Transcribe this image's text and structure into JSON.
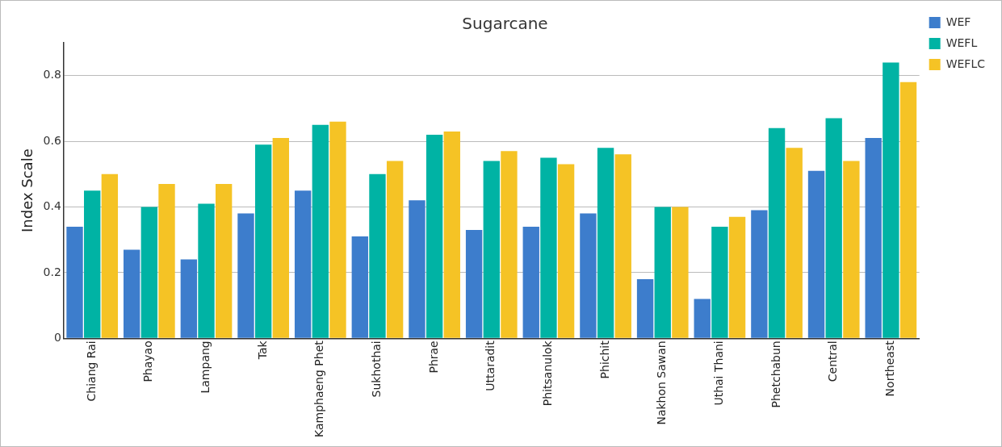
{
  "chart_data": {
    "type": "bar",
    "title": "Sugarcane",
    "ylabel": "Index Scale",
    "categories": [
      "Chiang Rai",
      "Phayao",
      "Lampang",
      "Tak",
      "Kamphaeng Phet",
      "Sukhothai",
      "Phrae",
      "Uttaradit",
      "Phitsanulok",
      "Phichit",
      "Nakhon Sawan",
      "Uthai Thani",
      "Phetchabun",
      "Central",
      "Northeast"
    ],
    "series": [
      {
        "name": "WEF",
        "color": "#3d7dcc",
        "values": [
          0.34,
          0.27,
          0.24,
          0.38,
          0.45,
          0.31,
          0.42,
          0.33,
          0.34,
          0.38,
          0.18,
          0.12,
          0.39,
          0.51,
          0.61
        ]
      },
      {
        "name": "WEFL",
        "color": "#00b3a4",
        "values": [
          0.45,
          0.4,
          0.41,
          0.59,
          0.65,
          0.5,
          0.62,
          0.54,
          0.55,
          0.58,
          0.4,
          0.34,
          0.64,
          0.67,
          0.84
        ]
      },
      {
        "name": "WEFLC",
        "color": "#f5c325",
        "values": [
          0.5,
          0.47,
          0.47,
          0.61,
          0.66,
          0.54,
          0.63,
          0.57,
          0.53,
          0.56,
          0.4,
          0.37,
          0.58,
          0.54,
          0.78
        ]
      }
    ],
    "ylim": [
      0,
      0.9
    ],
    "yticks": [
      0,
      0.2,
      0.4,
      0.6,
      0.8
    ],
    "grid": "y",
    "legend": "top right"
  }
}
